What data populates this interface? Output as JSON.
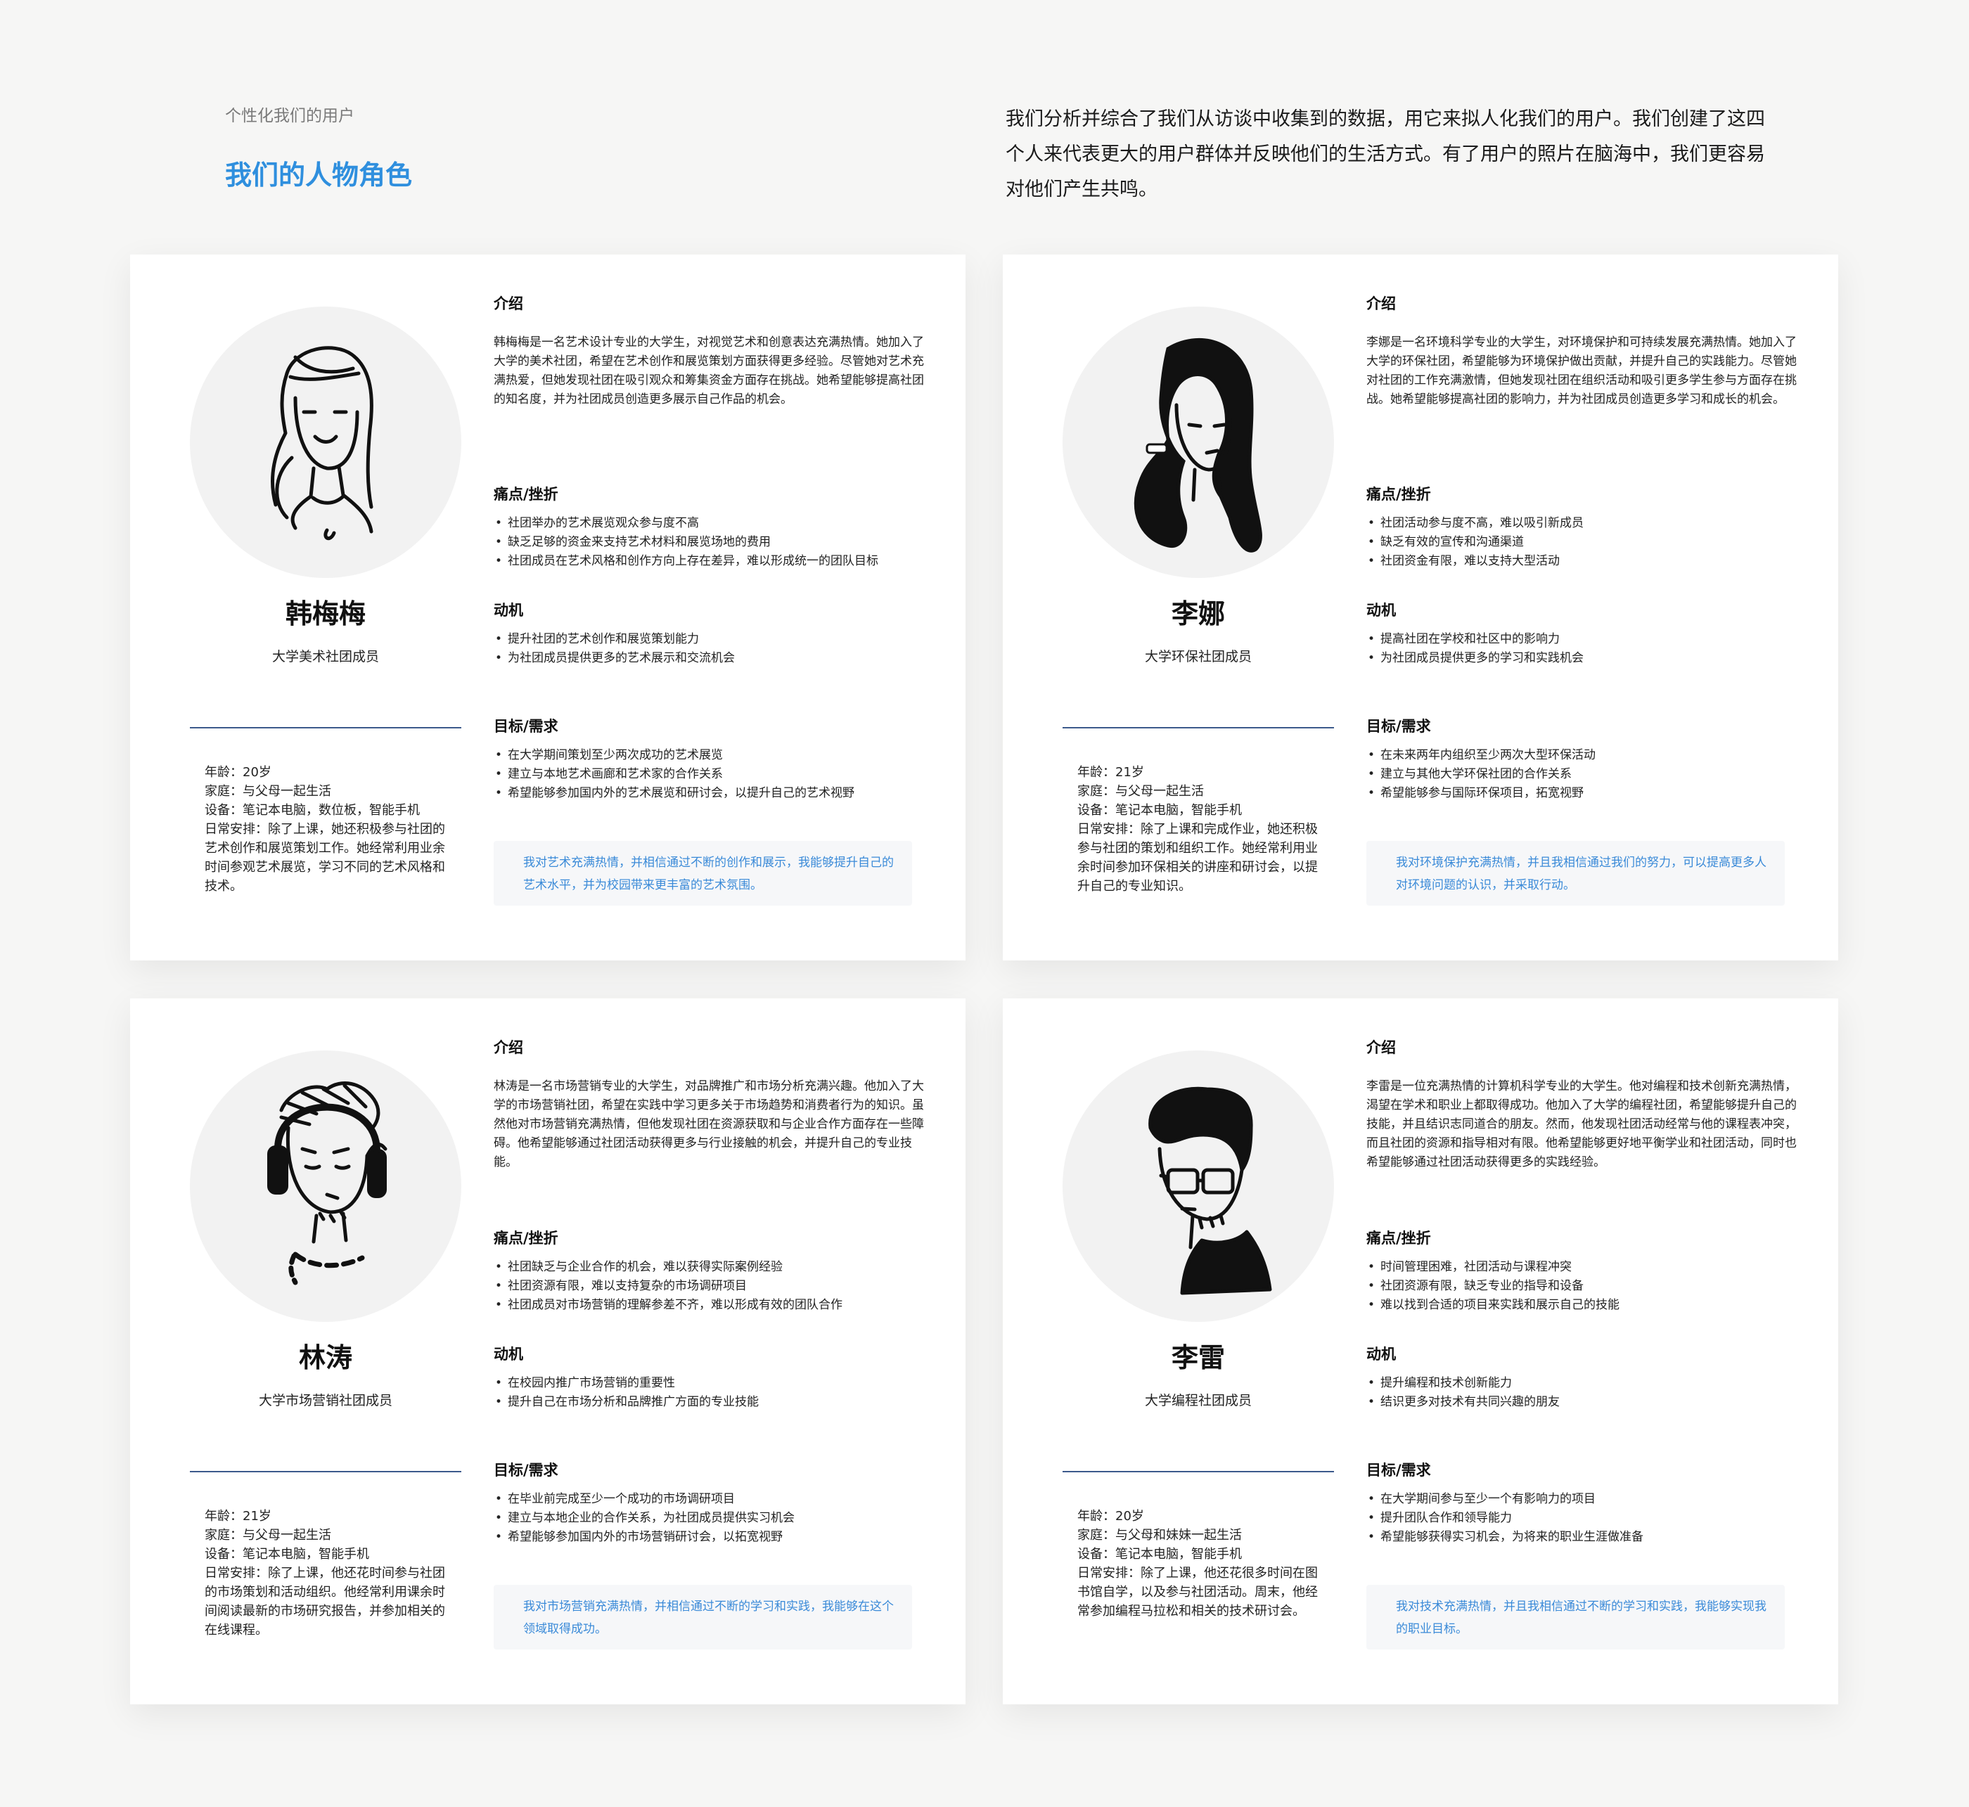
{
  "header": {
    "eyebrow": "个性化我们的用户",
    "title": "我们的人物角色",
    "description": "我们分析并综合了我们从访谈中收集到的数据，用它来拟人化我们的用户。我们创建了这四个人来代表更大的用户群体并反映他们的生活方式。有了用户的照片在脑海中，我们更容易对他们产生共鸣。"
  },
  "section_labels": {
    "intro": "介绍",
    "pain": "痛点/挫折",
    "motivation": "动机",
    "goals": "目标/需求"
  },
  "personas": [
    {
      "name": "韩梅梅",
      "role": "大学美术社团成员",
      "avatar_icon": "woman-long-hair-illustration",
      "profile": [
        "年龄：20岁",
        "家庭：与父母一起生活",
        "设备：笔记本电脑，数位板，智能手机",
        "日常安排：除了上课，她还积极参与社团的艺术创作和展览策划工作。她经常利用业余时间参观艺术展览，学习不同的艺术风格和技术。"
      ],
      "intro": "韩梅梅是一名艺术设计专业的大学生，对视觉艺术和创意表达充满热情。她加入了大学的美术社团，希望在艺术创作和展览策划方面获得更多经验。尽管她对艺术充满热爱，但她发现社团在吸引观众和筹集资金方面存在挑战。她希望能够提高社团的知名度，并为社团成员创造更多展示自己作品的机会。",
      "pain": [
        "社团举办的艺术展览观众参与度不高",
        "缺乏足够的资金来支持艺术材料和展览场地的费用",
        "社团成员在艺术风格和创作方向上存在差异，难以形成统一的团队目标"
      ],
      "motivation": [
        "提升社团的艺术创作和展览策划能力",
        "为社团成员提供更多的艺术展示和交流机会"
      ],
      "goals": [
        "在大学期间策划至少两次成功的艺术展览",
        "建立与本地艺术画廊和艺术家的合作关系",
        "希望能够参加国内外的艺术展览和研讨会，以提升自己的艺术视野"
      ],
      "quote": "我对艺术充满热情，并相信通过不断的创作和展示，我能够提升自己的艺术水平，并为校园带来更丰富的艺术氛围。"
    },
    {
      "name": "李娜",
      "role": "大学环保社团成员",
      "avatar_icon": "woman-black-hair-illustration",
      "profile": [
        "年龄：21岁",
        "家庭：与父母一起生活",
        "设备：笔记本电脑，智能手机",
        "日常安排：除了上课和完成作业，她还积极参与社团的策划和组织工作。她经常利用业余时间参加环保相关的讲座和研讨会，以提升自己的专业知识。"
      ],
      "intro": "李娜是一名环境科学专业的大学生，对环境保护和可持续发展充满热情。她加入了大学的环保社团，希望能够为环境保护做出贡献，并提升自己的实践能力。尽管她对社团的工作充满激情，但她发现社团在组织活动和吸引更多学生参与方面存在挑战。她希望能够提高社团的影响力，并为社团成员创造更多学习和成长的机会。",
      "pain": [
        "社团活动参与度不高，难以吸引新成员",
        "缺乏有效的宣传和沟通渠道",
        "社团资金有限，难以支持大型活动"
      ],
      "motivation": [
        "提高社团在学校和社区中的影响力",
        "为社团成员提供更多的学习和实践机会"
      ],
      "goals": [
        "在未来两年内组织至少两次大型环保活动",
        "建立与其他大学环保社团的合作关系",
        "希望能够参与国际环保项目，拓宽视野"
      ],
      "quote": "我对环境保护充满热情，并且我相信通过我们的努力，可以提高更多人对环境问题的认识，并采取行动。"
    },
    {
      "name": "林涛",
      "role": "大学市场营销社团成员",
      "avatar_icon": "man-headphones-illustration",
      "profile": [
        "年龄：21岁",
        "家庭：与父母一起生活",
        "设备：笔记本电脑，智能手机",
        "日常安排：除了上课，他还花时间参与社团的市场策划和活动组织。他经常利用课余时间阅读最新的市场研究报告，并参加相关的在线课程。"
      ],
      "intro": "林涛是一名市场营销专业的大学生，对品牌推广和市场分析充满兴趣。他加入了大学的市场营销社团，希望在实践中学习更多关于市场趋势和消费者行为的知识。虽然他对市场营销充满热情，但他发现社团在资源获取和与企业合作方面存在一些障碍。他希望能够通过社团活动获得更多与行业接触的机会，并提升自己的专业技能。",
      "pain": [
        "社团缺乏与企业合作的机会，难以获得实际案例经验",
        "社团资源有限，难以支持复杂的市场调研项目",
        "社团成员对市场营销的理解参差不齐，难以形成有效的团队合作"
      ],
      "motivation": [
        "在校园内推广市场营销的重要性",
        "提升自己在市场分析和品牌推广方面的专业技能"
      ],
      "goals": [
        "在毕业前完成至少一个成功的市场调研项目",
        "建立与本地企业的合作关系，为社团成员提供实习机会",
        "希望能够参加国内外的市场营销研讨会，以拓宽视野"
      ],
      "quote": "我对市场营销充满热情，并相信通过不断的学习和实践，我能够在这个领域取得成功。"
    },
    {
      "name": "李雷",
      "role": "大学编程社团成员",
      "avatar_icon": "man-glasses-illustration",
      "profile": [
        "年龄：20岁",
        "家庭：与父母和妹妹一起生活",
        "设备：笔记本电脑，智能手机",
        "日常安排：除了上课，他还花很多时间在图书馆自学，以及参与社团活动。周末，他经常参加编程马拉松和相关的技术研讨会。"
      ],
      "intro": "李雷是一位充满热情的计算机科学专业的大学生。他对编程和技术创新充满热情，渴望在学术和职业上都取得成功。他加入了大学的编程社团，希望能够提升自己的技能，并且结识志同道合的朋友。然而，他发现社团活动经常与他的课程表冲突，而且社团的资源和指导相对有限。他希望能够更好地平衡学业和社团活动，同时也希望能够通过社团活动获得更多的实践经验。",
      "pain": [
        "时间管理困难，社团活动与课程冲突",
        "社团资源有限，缺乏专业的指导和设备",
        "难以找到合适的项目来实践和展示自己的技能"
      ],
      "motivation": [
        "提升编程和技术创新能力",
        "结识更多对技术有共同兴趣的朋友"
      ],
      "goals": [
        "在大学期间参与至少一个有影响力的项目",
        "提升团队合作和领导能力",
        "希望能够获得实习机会，为将来的职业生涯做准备"
      ],
      "quote": "我对技术充满热情，并且我相信通过不断的学习和实践，我能够实现我的职业目标。"
    }
  ]
}
